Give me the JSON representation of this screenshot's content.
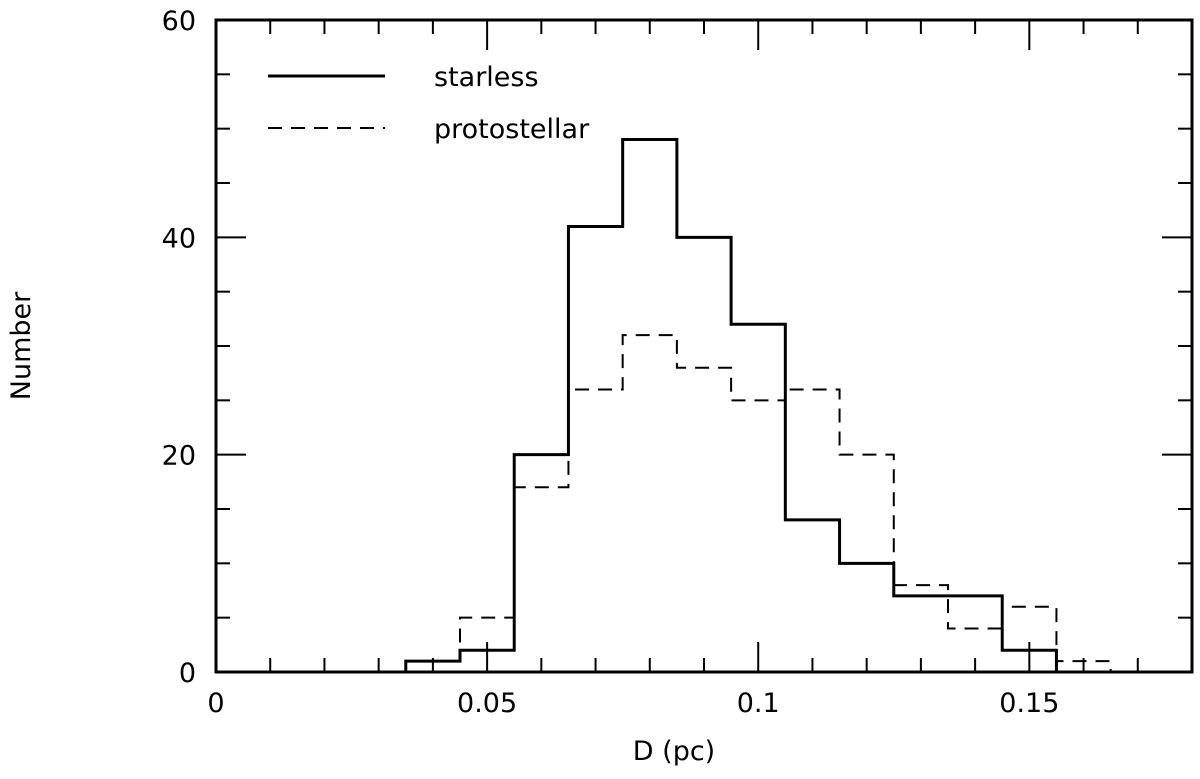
{
  "chart_data": {
    "type": "histogram-step",
    "title": "",
    "xlabel": "D (pc)",
    "ylabel": "Number",
    "xlim": [
      0,
      0.18
    ],
    "ylim": [
      0,
      60
    ],
    "x_major_ticks": [
      0,
      0.05,
      0.1,
      0.15
    ],
    "x_tick_labels": [
      "0",
      "0.05",
      "0.1",
      "0.15"
    ],
    "x_minor_step": 0.01,
    "y_major_ticks": [
      0,
      20,
      40,
      60
    ],
    "y_tick_labels": [
      "0",
      "20",
      "40",
      "60"
    ],
    "y_minor_step": 5,
    "grid": false,
    "legend_position": "top-left",
    "bin_edges": [
      0.025,
      0.035,
      0.045,
      0.055,
      0.065,
      0.075,
      0.085,
      0.095,
      0.105,
      0.115,
      0.125,
      0.135,
      0.145,
      0.155,
      0.165
    ],
    "series": [
      {
        "name": "starless",
        "line_style": "solid",
        "values": [
          0,
          1,
          2,
          20,
          41,
          49,
          40,
          32,
          14,
          10,
          7,
          7,
          2,
          0
        ]
      },
      {
        "name": "protostellar",
        "line_style": "dashed",
        "values": [
          0,
          1,
          5,
          17,
          26,
          31,
          28,
          25,
          26,
          20,
          8,
          4,
          6,
          1
        ]
      }
    ]
  }
}
